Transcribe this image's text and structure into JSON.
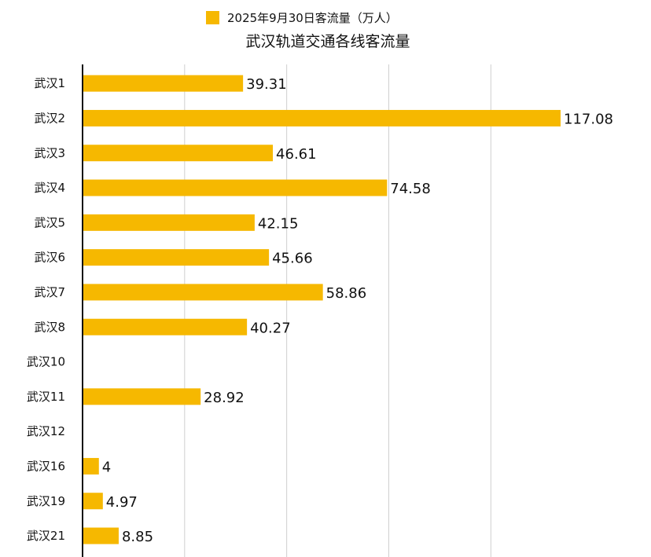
{
  "chart_data": {
    "type": "bar",
    "orientation": "horizontal",
    "title": "武汉轨道交通各线客流量",
    "categories": [
      "武汉1",
      "武汉2",
      "武汉3",
      "武汉4",
      "武汉5",
      "武汉6",
      "武汉7",
      "武汉8",
      "武汉10",
      "武汉11",
      "武汉12",
      "武汉16",
      "武汉19",
      "武汉21"
    ],
    "series": [
      {
        "name": "2025年9月30日客流量（万人）",
        "values": [
          39.31,
          117.08,
          46.61,
          74.58,
          42.15,
          45.66,
          58.86,
          40.27,
          null,
          28.92,
          null,
          4,
          4.97,
          8.85
        ],
        "labels": [
          "39.31",
          "117.08",
          "46.61",
          "74.58",
          "42.15",
          "45.66",
          "58.86",
          "40.27",
          "",
          "28.92",
          "",
          "4",
          "4.97",
          "8.85"
        ],
        "color": "#F6B800"
      }
    ],
    "xlim": [
      0,
      120
    ],
    "grid": true,
    "legend": "top"
  }
}
